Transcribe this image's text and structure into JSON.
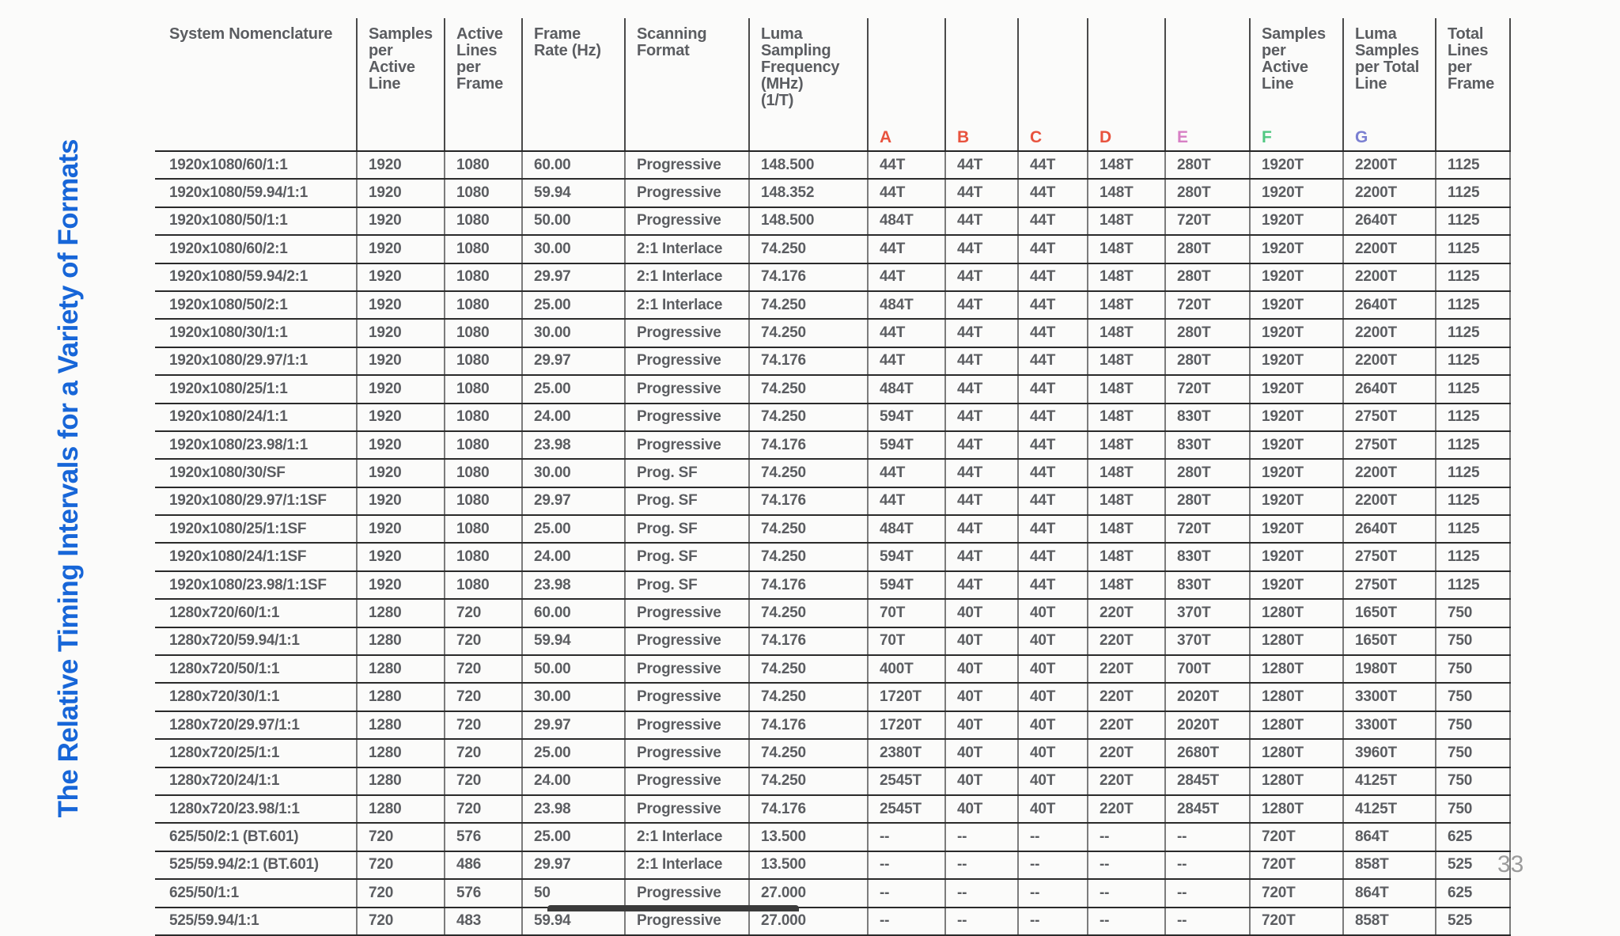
{
  "page": {
    "title_vertical": "The Relative Timing Intervals for a Variety of Formats",
    "title_color": "#1766d8",
    "page_number": "33"
  },
  "table": {
    "columns": [
      {
        "id": "nomenclature",
        "label": "System Nomenclature",
        "letter": "",
        "letter_color": ""
      },
      {
        "id": "samples-per-active-line",
        "label": "Samples\nper\nActive\nLine",
        "letter": "",
        "letter_color": ""
      },
      {
        "id": "active-lines-per-frame",
        "label": "Active\nLines\nper\nFrame",
        "letter": "",
        "letter_color": ""
      },
      {
        "id": "frame-rate",
        "label": "Frame\nRate (Hz)",
        "letter": "",
        "letter_color": ""
      },
      {
        "id": "scanning-format",
        "label": "Scanning\nFormat",
        "letter": "",
        "letter_color": ""
      },
      {
        "id": "luma-sampling-frequency",
        "label": "Luma\nSampling\nFrequency\n(MHz)\n(1/T)",
        "letter": "",
        "letter_color": ""
      },
      {
        "id": "interval-a",
        "label": "",
        "letter": "A",
        "letter_color": "#e8533e"
      },
      {
        "id": "interval-b",
        "label": "",
        "letter": "B",
        "letter_color": "#e8533e"
      },
      {
        "id": "interval-c",
        "label": "",
        "letter": "C",
        "letter_color": "#e8533e"
      },
      {
        "id": "interval-d",
        "label": "",
        "letter": "D",
        "letter_color": "#e8533e"
      },
      {
        "id": "interval-e",
        "label": "",
        "letter": "E",
        "letter_color": "#d77fc4"
      },
      {
        "id": "samples-per-active-line-f",
        "label": "Samples\nper\nActive\nLine",
        "letter": "F",
        "letter_color": "#52c882"
      },
      {
        "id": "luma-samples-per-total-line-g",
        "label": "Luma\nSamples\nper Total\nLine",
        "letter": "G",
        "letter_color": "#7a7fd1"
      },
      {
        "id": "total-lines-per-frame",
        "label": "Total\nLines\nper\nFrame",
        "letter": "",
        "letter_color": ""
      }
    ],
    "rows": [
      [
        "1920x1080/60/1:1",
        "1920",
        "1080",
        "60.00",
        "Progressive",
        "148.500",
        "44T",
        "44T",
        "44T",
        "148T",
        "280T",
        "1920T",
        "2200T",
        "1125"
      ],
      [
        "1920x1080/59.94/1:1",
        "1920",
        "1080",
        "59.94",
        "Progressive",
        "148.352",
        "44T",
        "44T",
        "44T",
        "148T",
        "280T",
        "1920T",
        "2200T",
        "1125"
      ],
      [
        "1920x1080/50/1:1",
        "1920",
        "1080",
        "50.00",
        "Progressive",
        "148.500",
        "484T",
        "44T",
        "44T",
        "148T",
        "720T",
        "1920T",
        "2640T",
        "1125"
      ],
      [
        "1920x1080/60/2:1",
        "1920",
        "1080",
        "30.00",
        "2:1 Interlace",
        "74.250",
        "44T",
        "44T",
        "44T",
        "148T",
        "280T",
        "1920T",
        "2200T",
        "1125"
      ],
      [
        "1920x1080/59.94/2:1",
        "1920",
        "1080",
        "29.97",
        "2:1 Interlace",
        "74.176",
        "44T",
        "44T",
        "44T",
        "148T",
        "280T",
        "1920T",
        "2200T",
        "1125"
      ],
      [
        "1920x1080/50/2:1",
        "1920",
        "1080",
        "25.00",
        "2:1 Interlace",
        "74.250",
        "484T",
        "44T",
        "44T",
        "148T",
        "720T",
        "1920T",
        "2640T",
        "1125"
      ],
      [
        "1920x1080/30/1:1",
        "1920",
        "1080",
        "30.00",
        "Progressive",
        "74.250",
        "44T",
        "44T",
        "44T",
        "148T",
        "280T",
        "1920T",
        "2200T",
        "1125"
      ],
      [
        "1920x1080/29.97/1:1",
        "1920",
        "1080",
        "29.97",
        "Progressive",
        "74.176",
        "44T",
        "44T",
        "44T",
        "148T",
        "280T",
        "1920T",
        "2200T",
        "1125"
      ],
      [
        "1920x1080/25/1:1",
        "1920",
        "1080",
        "25.00",
        "Progressive",
        "74.250",
        "484T",
        "44T",
        "44T",
        "148T",
        "720T",
        "1920T",
        "2640T",
        "1125"
      ],
      [
        "1920x1080/24/1:1",
        "1920",
        "1080",
        "24.00",
        "Progressive",
        "74.250",
        "594T",
        "44T",
        "44T",
        "148T",
        "830T",
        "1920T",
        "2750T",
        "1125"
      ],
      [
        "1920x1080/23.98/1:1",
        "1920",
        "1080",
        "23.98",
        "Progressive",
        "74.176",
        "594T",
        "44T",
        "44T",
        "148T",
        "830T",
        "1920T",
        "2750T",
        "1125"
      ],
      [
        "1920x1080/30/SF",
        "1920",
        "1080",
        "30.00",
        "Prog. SF",
        "74.250",
        "44T",
        "44T",
        "44T",
        "148T",
        "280T",
        "1920T",
        "2200T",
        "1125"
      ],
      [
        "1920x1080/29.97/1:1SF",
        "1920",
        "1080",
        "29.97",
        "Prog. SF",
        "74.176",
        "44T",
        "44T",
        "44T",
        "148T",
        "280T",
        "1920T",
        "2200T",
        "1125"
      ],
      [
        "1920x1080/25/1:1SF",
        "1920",
        "1080",
        "25.00",
        "Prog. SF",
        "74.250",
        "484T",
        "44T",
        "44T",
        "148T",
        "720T",
        "1920T",
        "2640T",
        "1125"
      ],
      [
        "1920x1080/24/1:1SF",
        "1920",
        "1080",
        "24.00",
        "Prog. SF",
        "74.250",
        "594T",
        "44T",
        "44T",
        "148T",
        "830T",
        "1920T",
        "2750T",
        "1125"
      ],
      [
        "1920x1080/23.98/1:1SF",
        "1920",
        "1080",
        "23.98",
        "Prog. SF",
        "74.176",
        "594T",
        "44T",
        "44T",
        "148T",
        "830T",
        "1920T",
        "2750T",
        "1125"
      ],
      [
        "1280x720/60/1:1",
        "1280",
        "720",
        "60.00",
        "Progressive",
        "74.250",
        "70T",
        "40T",
        "40T",
        "220T",
        "370T",
        "1280T",
        "1650T",
        "750"
      ],
      [
        "1280x720/59.94/1:1",
        "1280",
        "720",
        "59.94",
        "Progressive",
        "74.176",
        "70T",
        "40T",
        "40T",
        "220T",
        "370T",
        "1280T",
        "1650T",
        "750"
      ],
      [
        "1280x720/50/1:1",
        "1280",
        "720",
        "50.00",
        "Progressive",
        "74.250",
        "400T",
        "40T",
        "40T",
        "220T",
        "700T",
        "1280T",
        "1980T",
        "750"
      ],
      [
        "1280x720/30/1:1",
        "1280",
        "720",
        "30.00",
        "Progressive",
        "74.250",
        "1720T",
        "40T",
        "40T",
        "220T",
        "2020T",
        "1280T",
        "3300T",
        "750"
      ],
      [
        "1280x720/29.97/1:1",
        "1280",
        "720",
        "29.97",
        "Progressive",
        "74.176",
        "1720T",
        "40T",
        "40T",
        "220T",
        "2020T",
        "1280T",
        "3300T",
        "750"
      ],
      [
        "1280x720/25/1:1",
        "1280",
        "720",
        "25.00",
        "Progressive",
        "74.250",
        "2380T",
        "40T",
        "40T",
        "220T",
        "2680T",
        "1280T",
        "3960T",
        "750"
      ],
      [
        "1280x720/24/1:1",
        "1280",
        "720",
        "24.00",
        "Progressive",
        "74.250",
        "2545T",
        "40T",
        "40T",
        "220T",
        "2845T",
        "1280T",
        "4125T",
        "750"
      ],
      [
        "1280x720/23.98/1:1",
        "1280",
        "720",
        "23.98",
        "Progressive",
        "74.176",
        "2545T",
        "40T",
        "40T",
        "220T",
        "2845T",
        "1280T",
        "4125T",
        "750"
      ],
      [
        "625/50/2:1 (BT.601)",
        "720",
        "576",
        "25.00",
        "2:1 Interlace",
        "13.500",
        "--",
        "--",
        "--",
        "--",
        "--",
        "720T",
        "864T",
        "625"
      ],
      [
        "525/59.94/2:1 (BT.601)",
        "720",
        "486",
        "29.97",
        "2:1 Interlace",
        "13.500",
        "--",
        "--",
        "--",
        "--",
        "--",
        "720T",
        "858T",
        "525"
      ],
      [
        "625/50/1:1",
        "720",
        "576",
        "50",
        "Progressive",
        "27.000",
        "--",
        "--",
        "--",
        "--",
        "--",
        "720T",
        "864T",
        "625"
      ],
      [
        "525/59.94/1:1",
        "720",
        "483",
        "59.94",
        "Progressive",
        "27.000",
        "--",
        "--",
        "--",
        "--",
        "--",
        "720T",
        "858T",
        "525"
      ]
    ]
  }
}
